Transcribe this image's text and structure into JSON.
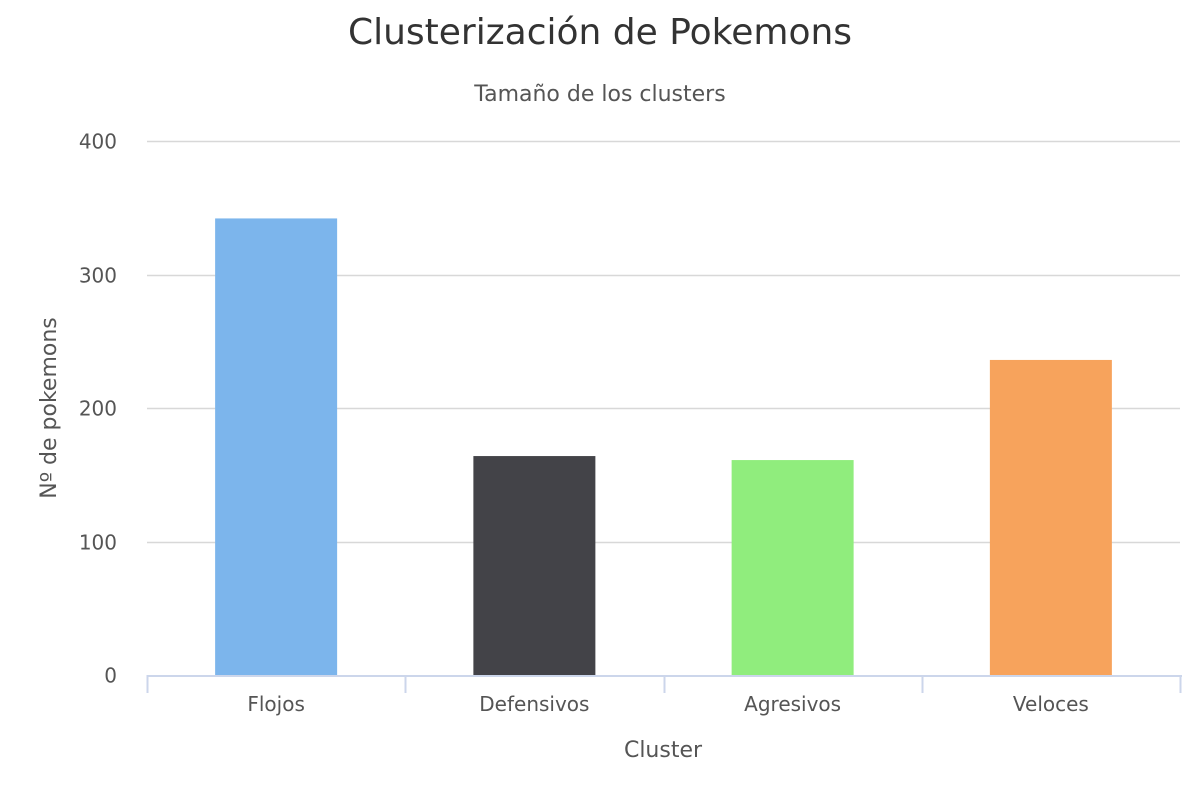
{
  "chart_data": {
    "type": "bar",
    "title": "Clusterización de Pokemons",
    "subtitle": "Tamaño de los clusters",
    "xlabel": "Cluster",
    "ylabel": "Nº de pokemons",
    "categories": [
      "Flojos",
      "Defensivos",
      "Agresivos",
      "Veloces"
    ],
    "values": [
      342,
      164,
      161,
      236
    ],
    "colors": [
      "#7cb5ec",
      "#434348",
      "#90ed7d",
      "#f7a35c"
    ],
    "ylim": [
      0,
      400
    ],
    "yticks": [
      0,
      100,
      200,
      300,
      400
    ],
    "grid": true,
    "legend": "none"
  }
}
